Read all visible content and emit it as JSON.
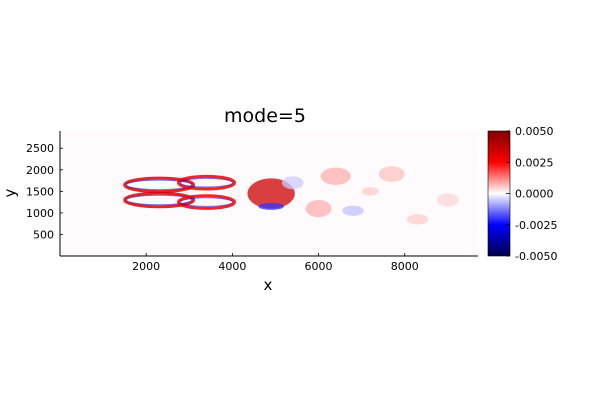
{
  "chart_data": {
    "type": "heatmap",
    "title": "mode=5",
    "xlabel": "x",
    "ylabel": "y",
    "xlim": [
      0,
      9700
    ],
    "ylim": [
      0,
      2900
    ],
    "xticks": [
      2000,
      4000,
      6000,
      8000
    ],
    "yticks": [
      500,
      1000,
      1500,
      2000,
      2500
    ],
    "xtick_labels": [
      "2000",
      "4000",
      "6000",
      "8000"
    ],
    "ytick_labels": [
      "500",
      "1000",
      "1500",
      "2000",
      "2500"
    ],
    "background_value": 0.0,
    "grid": false,
    "colorbar": {
      "colormap": "seismic",
      "range": [
        -0.005,
        0.005
      ],
      "ticks": [
        0.005,
        0.0025,
        0.0,
        -0.0025,
        -0.005
      ],
      "tick_labels": [
        "0.0050",
        "0.0025",
        "0.0000",
        "-0.0025",
        "-0.0050"
      ],
      "colors": {
        "low": "#00004c",
        "mid_low": "#0000ff",
        "zero": "#ffffff",
        "mid_high": "#ff0000",
        "high": "#800000"
      }
    },
    "features": [
      {
        "name": "upper-lobe-1",
        "kind": "ring",
        "cx": 2300,
        "cy": 1650,
        "rx": 800,
        "ry": 110,
        "value": 0.0032
      },
      {
        "name": "lower-lobe-1",
        "kind": "ring",
        "cx": 2300,
        "cy": 1300,
        "rx": 800,
        "ry": 110,
        "value": 0.0032
      },
      {
        "name": "upper-lobe-2",
        "kind": "ring",
        "cx": 3400,
        "cy": 1700,
        "rx": 650,
        "ry": 100,
        "value": 0.0028
      },
      {
        "name": "lower-lobe-2",
        "kind": "ring",
        "cx": 3400,
        "cy": 1250,
        "rx": 650,
        "ry": 100,
        "value": 0.0028
      },
      {
        "name": "crossing-region",
        "kind": "blob",
        "cx": 4900,
        "cy": 1450,
        "rx": 550,
        "ry": 350,
        "value": 0.0035
      },
      {
        "name": "crossing-neg",
        "kind": "blob",
        "cx": 4900,
        "cy": 1150,
        "rx": 300,
        "ry": 80,
        "value": -0.002
      },
      {
        "name": "wake-1",
        "kind": "blob",
        "cx": 6400,
        "cy": 1850,
        "rx": 350,
        "ry": 200,
        "value": 0.0008
      },
      {
        "name": "wake-2",
        "kind": "blob",
        "cx": 6000,
        "cy": 1100,
        "rx": 300,
        "ry": 200,
        "value": 0.0008
      },
      {
        "name": "wake-neg-1",
        "kind": "blob",
        "cx": 6800,
        "cy": 1050,
        "rx": 250,
        "ry": 120,
        "value": -0.0006
      },
      {
        "name": "wake-neg-2",
        "kind": "blob",
        "cx": 5400,
        "cy": 1700,
        "rx": 250,
        "ry": 150,
        "value": -0.0005
      },
      {
        "name": "wake-3",
        "kind": "blob",
        "cx": 7700,
        "cy": 1900,
        "rx": 300,
        "ry": 180,
        "value": 0.0006
      },
      {
        "name": "wake-4",
        "kind": "blob",
        "cx": 8300,
        "cy": 850,
        "rx": 250,
        "ry": 120,
        "value": 0.0005
      },
      {
        "name": "wake-5",
        "kind": "blob",
        "cx": 9000,
        "cy": 1300,
        "rx": 250,
        "ry": 150,
        "value": 0.0004
      },
      {
        "name": "wake-6",
        "kind": "blob",
        "cx": 7200,
        "cy": 1500,
        "rx": 200,
        "ry": 100,
        "value": 0.0005
      }
    ]
  }
}
